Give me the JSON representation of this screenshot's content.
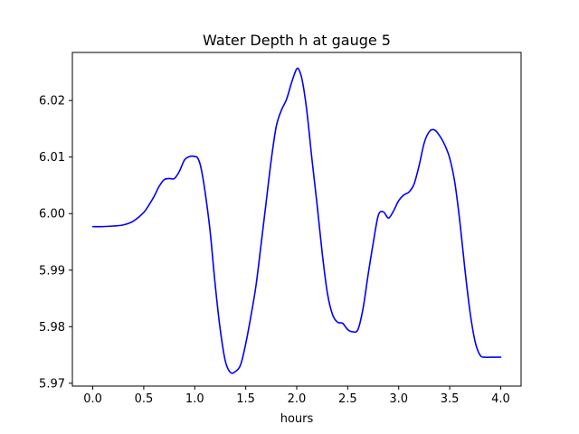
{
  "chart_data": {
    "type": "line",
    "title": "Water Depth h at gauge 5",
    "xlabel": "hours",
    "ylabel": "",
    "xlim": [
      -0.2,
      4.2
    ],
    "ylim": [
      5.9695,
      6.0285
    ],
    "x_ticks": [
      0.0,
      0.5,
      1.0,
      1.5,
      2.0,
      2.5,
      3.0,
      3.5,
      4.0
    ],
    "x_tick_labels": [
      "0.0",
      "0.5",
      "1.0",
      "1.5",
      "2.0",
      "2.5",
      "3.0",
      "3.5",
      "4.0"
    ],
    "y_ticks": [
      5.97,
      5.98,
      5.99,
      6.0,
      6.01,
      6.02
    ],
    "y_tick_labels": [
      "5.97",
      "5.98",
      "5.99",
      "6.00",
      "6.01",
      "6.02"
    ],
    "grid": false,
    "series": [
      {
        "color": "#0000ff",
        "x": [
          0.0,
          0.1,
          0.2,
          0.3,
          0.4,
          0.5,
          0.55,
          0.6,
          0.65,
          0.7,
          0.75,
          0.8,
          0.85,
          0.9,
          0.95,
          1.0,
          1.03,
          1.06,
          1.1,
          1.15,
          1.2,
          1.25,
          1.3,
          1.35,
          1.4,
          1.45,
          1.5,
          1.55,
          1.6,
          1.65,
          1.7,
          1.75,
          1.8,
          1.85,
          1.9,
          1.95,
          2.0,
          2.03,
          2.06,
          2.1,
          2.15,
          2.2,
          2.25,
          2.3,
          2.35,
          2.4,
          2.45,
          2.5,
          2.55,
          2.6,
          2.65,
          2.7,
          2.75,
          2.8,
          2.85,
          2.9,
          2.95,
          3.0,
          3.05,
          3.1,
          3.15,
          3.2,
          3.25,
          3.3,
          3.35,
          3.4,
          3.45,
          3.5,
          3.55,
          3.6,
          3.65,
          3.7,
          3.75,
          3.8,
          3.85,
          3.9,
          3.95,
          4.0
        ],
        "y": [
          5.9977,
          5.9977,
          5.9978,
          5.998,
          5.9987,
          6.0002,
          6.0015,
          6.003,
          6.0048,
          6.006,
          6.0062,
          6.0062,
          6.0075,
          6.0095,
          6.0101,
          6.0101,
          6.0098,
          6.0082,
          6.004,
          5.997,
          5.9875,
          5.9795,
          5.9739,
          5.9719,
          5.9721,
          5.9733,
          5.977,
          5.9818,
          5.9872,
          5.9945,
          6.002,
          6.0095,
          6.0155,
          6.0183,
          6.0202,
          6.0232,
          6.0256,
          6.0251,
          6.023,
          6.018,
          6.0095,
          6.0015,
          5.993,
          5.986,
          5.9822,
          5.9808,
          5.9806,
          5.9795,
          5.9791,
          5.9795,
          5.9832,
          5.9892,
          5.9948,
          5.9997,
          6.0003,
          5.9992,
          6.0005,
          6.0023,
          6.0033,
          6.0038,
          6.0052,
          6.0085,
          6.0125,
          6.0145,
          6.0148,
          6.0138,
          6.0122,
          6.0098,
          6.0055,
          5.9985,
          5.99,
          5.9825,
          5.9773,
          5.9749,
          5.9746,
          5.9746,
          5.9746,
          5.9746
        ]
      }
    ]
  }
}
